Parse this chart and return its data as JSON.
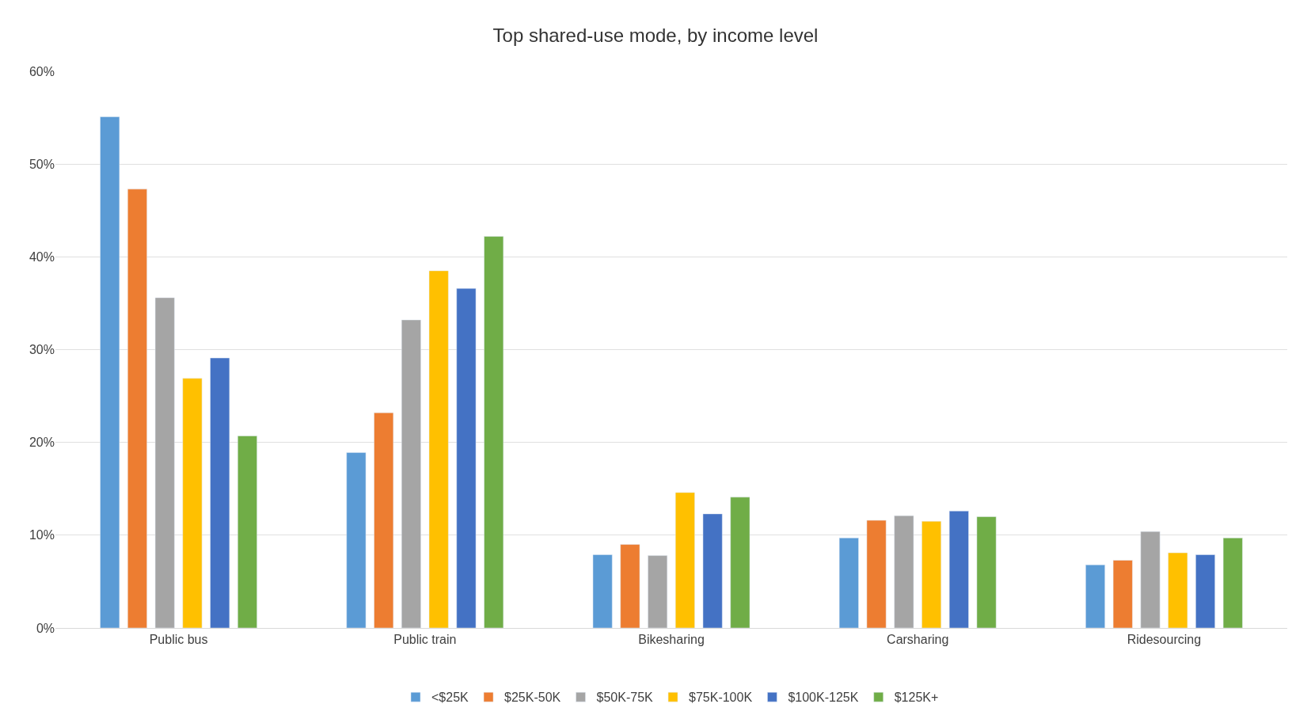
{
  "chart_data": {
    "type": "bar",
    "title": "Top shared-use mode, by income level",
    "categories": [
      "Public bus",
      "Public train",
      "Bikesharing",
      "Carsharing",
      "Ridesourcing"
    ],
    "series": [
      {
        "name": "<$25K",
        "color": "#5b9bd5",
        "values": [
          55.1,
          18.9,
          7.9,
          9.7,
          6.8
        ]
      },
      {
        "name": "$25K-50K",
        "color": "#ed7d31",
        "values": [
          47.3,
          23.2,
          9.0,
          11.6,
          7.3
        ]
      },
      {
        "name": "$50K-75K",
        "color": "#a5a5a5",
        "values": [
          35.6,
          33.2,
          7.8,
          12.1,
          10.4
        ]
      },
      {
        "name": "$75K-100K",
        "color": "#ffc000",
        "values": [
          26.9,
          38.5,
          14.6,
          11.5,
          8.1
        ]
      },
      {
        "name": "$100K-125K",
        "color": "#4472c4",
        "values": [
          29.1,
          36.6,
          12.3,
          12.6,
          7.9
        ]
      },
      {
        "name": "$125K+",
        "color": "#70ad47",
        "values": [
          20.7,
          42.2,
          14.1,
          12.0,
          9.7
        ]
      }
    ],
    "ylim": [
      0,
      60
    ],
    "yticks": [
      {
        "value": 0,
        "label": "0%"
      },
      {
        "value": 10,
        "label": "10%"
      },
      {
        "value": 20,
        "label": "20%"
      },
      {
        "value": 30,
        "label": "30%"
      },
      {
        "value": 40,
        "label": "40%"
      },
      {
        "value": 50,
        "label": "50%"
      },
      {
        "value": 60,
        "label": "60%"
      }
    ],
    "grid": "y",
    "legend": "bottom"
  }
}
